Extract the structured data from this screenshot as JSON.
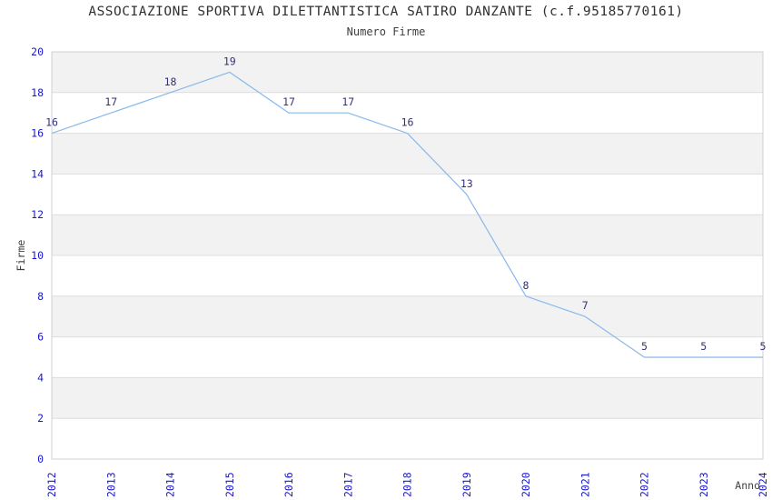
{
  "chart_data": {
    "type": "line",
    "title": "ASSOCIAZIONE SPORTIVA DILETTANTISTICA SATIRO DANZANTE (c.f.95185770161)",
    "subtitle": "Numero Firme",
    "xlabel": "Anno",
    "ylabel": "Firme",
    "x": [
      2012,
      2013,
      2014,
      2015,
      2016,
      2017,
      2018,
      2019,
      2020,
      2021,
      2022,
      2023,
      2024
    ],
    "values": [
      16,
      17,
      18,
      19,
      17,
      17,
      16,
      13,
      8,
      7,
      5,
      5,
      5
    ],
    "ylim": [
      0,
      20
    ],
    "ytick_step": 2,
    "grid": "horizontal-bands-alternating",
    "legend_position": "none",
    "point_markers": false,
    "data_labels_shown": true,
    "colors": {
      "line": "#8AB8EA",
      "tick_label": "#1919CC",
      "point_label": "#333377",
      "band_gray": "#F2F2F2",
      "band_white": "#FFFFFF",
      "grid_line": "#DDDDDD",
      "plot_border": "#D0D0D0",
      "title_text": "#303030",
      "axis_label_text": "#404040"
    }
  }
}
